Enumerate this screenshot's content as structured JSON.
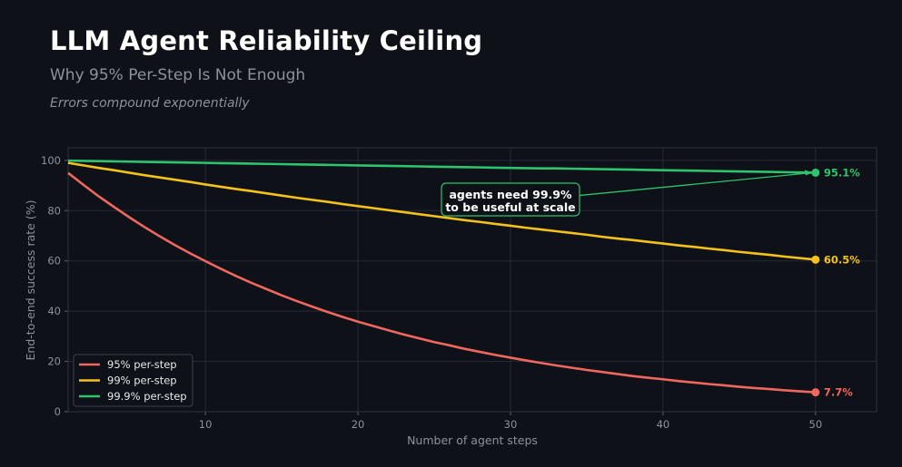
{
  "header": {
    "title": "LLM Agent Reliability Ceiling",
    "subtitle": "Why 95% Per-Step Is Not Enough",
    "tagline": "Errors compound exponentially"
  },
  "chart_data": {
    "type": "line",
    "xlabel": "Number of agent steps",
    "ylabel": "End-to-end success rate (%)",
    "xlim": [
      1,
      54
    ],
    "ylim": [
      0,
      105
    ],
    "xticks": [
      10,
      20,
      30,
      40,
      50
    ],
    "yticks": [
      0,
      20,
      40,
      60,
      80,
      100
    ],
    "grid": true,
    "legend_position": "lower-left",
    "x": [
      1,
      2,
      3,
      4,
      5,
      6,
      7,
      8,
      9,
      10,
      11,
      12,
      13,
      14,
      15,
      16,
      17,
      18,
      19,
      20,
      21,
      22,
      23,
      24,
      25,
      26,
      27,
      28,
      29,
      30,
      31,
      32,
      33,
      34,
      35,
      36,
      37,
      38,
      39,
      40,
      41,
      42,
      43,
      44,
      45,
      46,
      47,
      48,
      49,
      50
    ],
    "series": [
      {
        "name": "95% per-step",
        "color": "#f0675f",
        "values": [
          95.0,
          90.3,
          85.7,
          81.5,
          77.4,
          73.5,
          69.8,
          66.3,
          63.0,
          59.9,
          56.9,
          54.0,
          51.3,
          48.8,
          46.3,
          44.0,
          41.8,
          39.7,
          37.7,
          35.8,
          34.1,
          32.4,
          30.7,
          29.2,
          27.7,
          26.4,
          25.0,
          23.8,
          22.6,
          21.5,
          20.4,
          19.4,
          18.4,
          17.5,
          16.6,
          15.8,
          15.0,
          14.2,
          13.5,
          12.9,
          12.2,
          11.6,
          11.0,
          10.5,
          9.9,
          9.4,
          9.0,
          8.5,
          8.1,
          7.7
        ],
        "end_label": "7.7%"
      },
      {
        "name": "99% per-step",
        "color": "#f4c21b",
        "values": [
          99.0,
          98.0,
          97.0,
          96.1,
          95.1,
          94.1,
          93.2,
          92.3,
          91.4,
          90.4,
          89.5,
          88.6,
          87.8,
          86.9,
          86.0,
          85.1,
          84.3,
          83.5,
          82.6,
          81.8,
          81.0,
          80.2,
          79.4,
          78.6,
          77.8,
          77.0,
          76.2,
          75.5,
          74.7,
          74.0,
          73.2,
          72.5,
          71.8,
          71.1,
          70.4,
          69.6,
          68.9,
          68.3,
          67.6,
          66.9,
          66.2,
          65.6,
          64.9,
          64.3,
          63.6,
          63.0,
          62.4,
          61.7,
          61.1,
          60.5
        ],
        "end_label": "60.5%"
      },
      {
        "name": "99.9% per-step",
        "color": "#2ec46e",
        "values": [
          99.9,
          99.8,
          99.7,
          99.6,
          99.5,
          99.4,
          99.3,
          99.2,
          99.1,
          99.0,
          98.9,
          98.8,
          98.7,
          98.6,
          98.5,
          98.4,
          98.3,
          98.2,
          98.1,
          98.0,
          97.9,
          97.8,
          97.7,
          97.6,
          97.5,
          97.4,
          97.3,
          97.2,
          97.1,
          97.0,
          96.9,
          96.8,
          96.8,
          96.7,
          96.6,
          96.5,
          96.4,
          96.3,
          96.2,
          96.1,
          96.0,
          95.9,
          95.8,
          95.7,
          95.6,
          95.5,
          95.4,
          95.3,
          95.2,
          95.1
        ],
        "end_label": "95.1%"
      }
    ],
    "annotation": {
      "text_line1": "agents need 99.9%",
      "text_line2": "to be useful at scale",
      "x": 30,
      "y": 83,
      "arrow_to": [
        50,
        95.1
      ],
      "color": "#2ec46e"
    }
  }
}
